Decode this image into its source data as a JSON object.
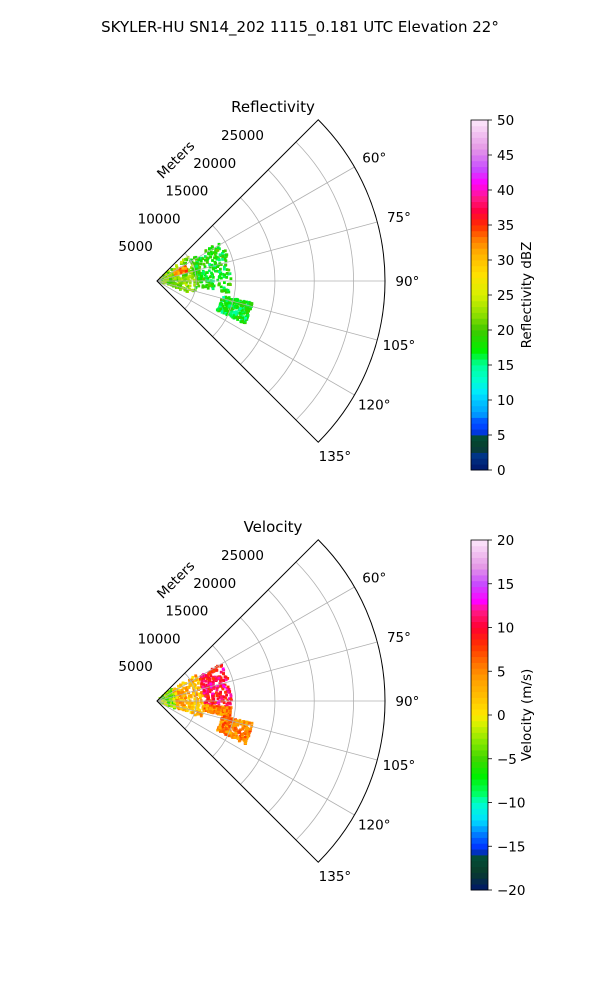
{
  "suptitle": "SKYLER-HU  SN14_202  1115_0.181 UTC Elevation 22°",
  "chart_data": [
    {
      "type": "polar-sector",
      "title": "Reflectivity",
      "range_label": "Meters",
      "radial_ticks": [
        5000,
        10000,
        15000,
        20000,
        25000
      ],
      "radial_tick_labels": [
        "5000",
        "10000",
        "15000",
        "20000",
        "25000"
      ],
      "azimuth_ticks": [
        60,
        75,
        90,
        105,
        120,
        135
      ],
      "azimuth_tick_labels": [
        "60°",
        "75°",
        "90°",
        "105°",
        "120°",
        "135°"
      ],
      "azimuth_range": [
        45,
        135
      ],
      "range_max": 29000,
      "colorbar": {
        "label": "Reflectivity dBZ",
        "min": 0,
        "max": 50,
        "ticks": [
          0,
          5,
          10,
          15,
          20,
          25,
          30,
          35,
          40,
          45,
          50
        ],
        "tick_labels": [
          "0",
          "5",
          "10",
          "15",
          "20",
          "25",
          "30",
          "35",
          "40",
          "45",
          "50"
        ]
      },
      "echo_regions": [
        {
          "az_min": 50,
          "az_max": 110,
          "r_min": 500,
          "r_max": 5000,
          "value": 22
        },
        {
          "az_min": 58,
          "az_max": 100,
          "r_min": 5000,
          "r_max": 9500,
          "value": 18
        },
        {
          "az_min": 103,
          "az_max": 116,
          "r_min": 8500,
          "r_max": 12500,
          "value": 17
        },
        {
          "az_min": 62,
          "az_max": 72,
          "r_min": 2500,
          "r_max": 4000,
          "value": 33
        }
      ]
    },
    {
      "type": "polar-sector",
      "title": "Velocity",
      "range_label": "Meters",
      "radial_ticks": [
        5000,
        10000,
        15000,
        20000,
        25000
      ],
      "radial_tick_labels": [
        "5000",
        "10000",
        "15000",
        "20000",
        "25000"
      ],
      "azimuth_ticks": [
        60,
        75,
        90,
        105,
        120,
        135
      ],
      "azimuth_tick_labels": [
        "60°",
        "75°",
        "90°",
        "105°",
        "120°",
        "135°"
      ],
      "azimuth_range": [
        45,
        135
      ],
      "range_max": 29000,
      "colorbar": {
        "label": "Velocity (m/s)",
        "min": -20,
        "max": 20,
        "ticks": [
          -20,
          -15,
          -10,
          -5,
          0,
          5,
          10,
          15,
          20
        ],
        "tick_labels": [
          "−20",
          "−15",
          "−10",
          "−5",
          "0",
          "5",
          "10",
          "15",
          "20"
        ]
      },
      "echo_regions": [
        {
          "az_min": 50,
          "az_max": 112,
          "r_min": 500,
          "r_max": 2500,
          "value": -3
        },
        {
          "az_min": 55,
          "az_max": 110,
          "r_min": 2500,
          "r_max": 6000,
          "value": 3
        },
        {
          "az_min": 60,
          "az_max": 95,
          "r_min": 6000,
          "r_max": 9500,
          "value": 10
        },
        {
          "az_min": 95,
          "az_max": 102,
          "r_min": 6000,
          "r_max": 9500,
          "value": 5
        },
        {
          "az_min": 103,
          "az_max": 116,
          "r_min": 8500,
          "r_max": 12500,
          "value": 5
        }
      ]
    }
  ]
}
